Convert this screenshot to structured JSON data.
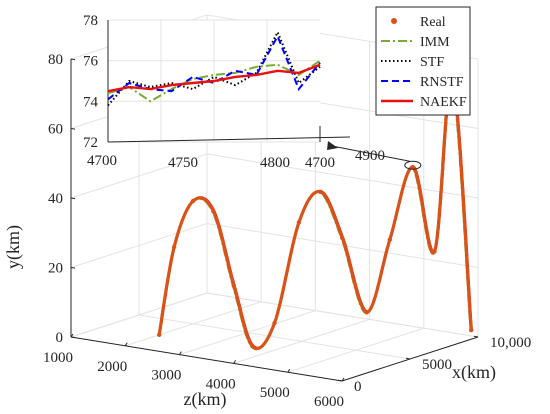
{
  "chart_data": [
    {
      "type": "line",
      "projection": "3d",
      "title": "",
      "xlabel": "x(km)",
      "ylabel": "y(km)",
      "zlabel": "z(km)",
      "xlim": [
        0,
        10000
      ],
      "ylim": [
        0,
        80
      ],
      "zlim": [
        1000,
        6000
      ],
      "xticks": [
        "0",
        "5000",
        "10,000"
      ],
      "yticks": [
        "0",
        "20",
        "40",
        "60",
        "80"
      ],
      "zticks": [
        "1000",
        "2000",
        "3000",
        "4000",
        "5000",
        "6000"
      ],
      "grid": true,
      "series": [
        {
          "name": "Real",
          "color": "#D95319",
          "marker": "dot",
          "points": [
            {
              "z": 2000,
              "x": 2500,
              "y": 0
            },
            {
              "z": 2150,
              "x": 3000,
              "y": 25
            },
            {
              "z": 2350,
              "x": 3600,
              "y": 38
            },
            {
              "z": 2600,
              "x": 4100,
              "y": 35
            },
            {
              "z": 2900,
              "x": 4400,
              "y": 14
            },
            {
              "z": 3200,
              "x": 4600,
              "y": -3
            },
            {
              "z": 3500,
              "x": 5000,
              "y": 4
            },
            {
              "z": 3800,
              "x": 5600,
              "y": 33
            },
            {
              "z": 4100,
              "x": 6000,
              "y": 42
            },
            {
              "z": 4400,
              "x": 6400,
              "y": 29
            },
            {
              "z": 4750,
              "x": 6800,
              "y": 8
            },
            {
              "z": 5050,
              "x": 7300,
              "y": 29
            },
            {
              "z": 5350,
              "x": 7800,
              "y": 50
            },
            {
              "z": 5650,
              "x": 8200,
              "y": 26
            },
            {
              "z": 5850,
              "x": 8700,
              "y": 76
            },
            {
              "z": 6050,
              "x": 9300,
              "y": 3
            }
          ]
        },
        {
          "name": "IMM",
          "color": "#77AC30",
          "dash": "9,3,2,3"
        },
        {
          "name": "STF",
          "color": "#000000",
          "dash": "1.5,2.5"
        },
        {
          "name": "RNSTF",
          "color": "#0000FF",
          "dash": "7,4"
        },
        {
          "name": "NAEKF",
          "color": "#E81010",
          "dash": ""
        }
      ],
      "legend": {
        "placement": "top-right"
      }
    },
    {
      "type": "line",
      "role": "inset",
      "title": "",
      "xlim": [
        4700,
        4800
      ],
      "ylim": [
        72,
        78
      ],
      "xticks": [
        "4700",
        "4750",
        "4800",
        "4700",
        "4900"
      ],
      "yticks": [
        "72",
        "74",
        "76",
        "78"
      ],
      "x": [
        4700,
        4710,
        4720,
        4730,
        4740,
        4750,
        4760,
        4770,
        4780,
        4790,
        4800
      ],
      "series": [
        {
          "name": "IMM",
          "values": [
            74.4,
            74.7,
            74.0,
            74.6,
            75.1,
            75.3,
            75.4,
            75.7,
            75.8,
            75.3,
            76.0
          ]
        },
        {
          "name": "STF",
          "values": [
            73.8,
            75.0,
            74.7,
            74.9,
            74.6,
            75.2,
            74.8,
            75.4,
            77.4,
            74.9,
            75.7
          ]
        },
        {
          "name": "RNSTF",
          "values": [
            74.1,
            74.9,
            74.6,
            74.5,
            75.2,
            74.9,
            75.5,
            75.3,
            77.2,
            74.6,
            75.9
          ]
        },
        {
          "name": "NAEKF",
          "values": [
            74.5,
            74.7,
            74.6,
            74.8,
            74.9,
            75.0,
            75.2,
            75.3,
            75.5,
            75.4,
            75.8
          ]
        }
      ]
    }
  ]
}
